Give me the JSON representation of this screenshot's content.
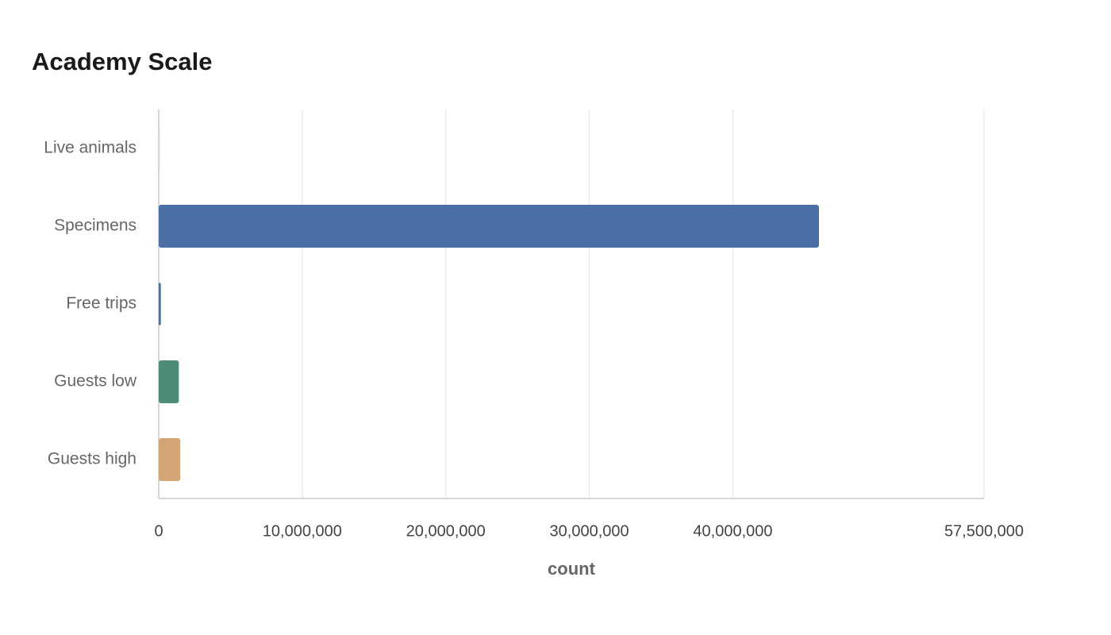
{
  "chart_data": {
    "type": "hbar",
    "title": "Academy Scale",
    "x_label": "count",
    "categories": [
      "Live animals",
      "Specimens",
      "Free trips",
      "Guests low",
      "Guests high"
    ],
    "values": [
      30000,
      46000000,
      150000,
      1400000,
      1500000
    ],
    "colors": [
      "#d9d9d9",
      "#4a6fa5",
      "#4a6fa5",
      "#4e8c7a",
      "#d4a574"
    ],
    "xlim": [
      0,
      57500000
    ],
    "xticks": [
      0,
      {
        "value": 10000000,
        "label": "10,000,000"
      },
      {
        "value": 20000000,
        "label": "20,000,000"
      },
      {
        "value": 30000000,
        "label": "30,000,000"
      },
      {
        "value": 40000000,
        "label": "40,000,000"
      },
      {
        "value": 57500000,
        "label": "57,500,000"
      }
    ],
    "grid": true
  }
}
